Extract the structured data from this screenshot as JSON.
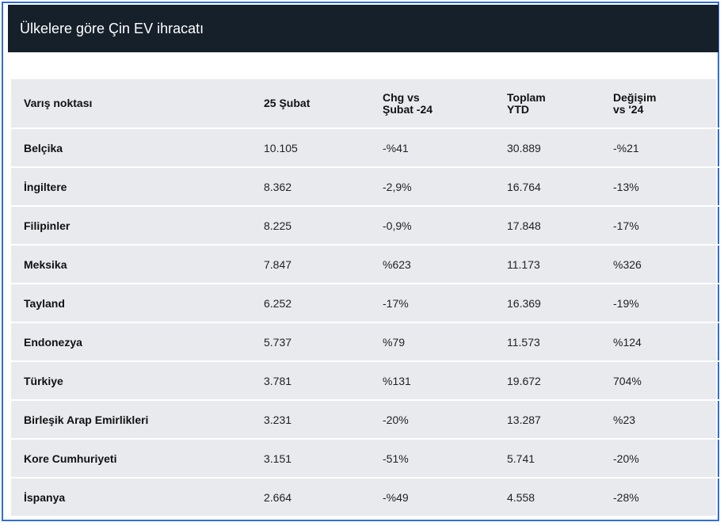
{
  "title": "Ülkelere göre Çin EV ihracatı",
  "table": {
    "headers": [
      "Varış noktası",
      "25 Şubat",
      "Chg vs\nŞubat -24",
      "Toplam\nYTD",
      "Değişim\nvs '24"
    ],
    "rows": [
      [
        "Belçika",
        "10.105",
        "-%41",
        "30.889",
        "-%21"
      ],
      [
        "İngiltere",
        "8.362",
        "-2,9%",
        "16.764",
        "-13%"
      ],
      [
        "Filipinler",
        "8.225",
        "-0,9%",
        "17.848",
        "-17%"
      ],
      [
        "Meksika",
        "7.847",
        "%623",
        "11.173",
        "%326"
      ],
      [
        "Tayland",
        "6.252",
        "-17%",
        "16.369",
        "-19%"
      ],
      [
        "Endonezya",
        "5.737",
        "%79",
        "11.573",
        "%124"
      ],
      [
        "Türkiye",
        "3.781",
        "%131",
        "19.672",
        "704%"
      ],
      [
        "Birleşik Arap Emirlikleri",
        "3.231",
        "-20%",
        "13.287",
        "%23"
      ],
      [
        "Kore Cumhuriyeti",
        "3.151",
        "-51%",
        "5.741",
        "-20%"
      ],
      [
        "İspanya",
        "2.664",
        "-%49",
        "4.558",
        "-28%"
      ]
    ]
  },
  "colors": {
    "title_bar": "#15202b",
    "frame_border": "#2f6fd6",
    "table_bg": "#e8eaee"
  }
}
